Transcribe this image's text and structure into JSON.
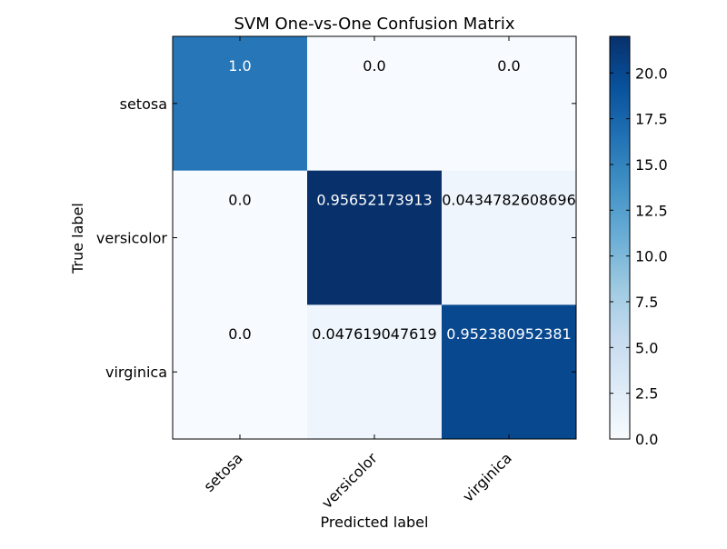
{
  "chart_data": {
    "type": "heatmap",
    "title": "SVM One-vs-One Confusion Matrix",
    "xlabel": "Predicted label",
    "ylabel": "True label",
    "x_categories": [
      "setosa",
      "versicolor",
      "virginica"
    ],
    "y_categories": [
      "setosa",
      "versicolor",
      "virginica"
    ],
    "matrix": [
      [
        16,
        0,
        0
      ],
      [
        0,
        22,
        1
      ],
      [
        0,
        1,
        20
      ]
    ],
    "cell_labels": [
      [
        "1.0",
        "0.0",
        "0.0"
      ],
      [
        "0.0",
        "0.95652173913",
        "0.0434782608696"
      ],
      [
        "0.0",
        "0.047619047619",
        "0.952380952381"
      ]
    ],
    "colorbar": {
      "min": 0.0,
      "max": 22.0,
      "ticks": [
        0.0,
        2.5,
        5.0,
        7.5,
        10.0,
        12.5,
        15.0,
        17.5,
        20.0
      ],
      "tick_labels": [
        "0.0",
        "2.5",
        "5.0",
        "7.5",
        "10.0",
        "12.5",
        "15.0",
        "17.5",
        "20.0"
      ]
    },
    "colormap": "Blues",
    "colors": {
      "low": "#f7fbff",
      "high": "#08306b",
      "text_dark": "#000000",
      "text_light": "#ffffff"
    },
    "grid": false
  }
}
